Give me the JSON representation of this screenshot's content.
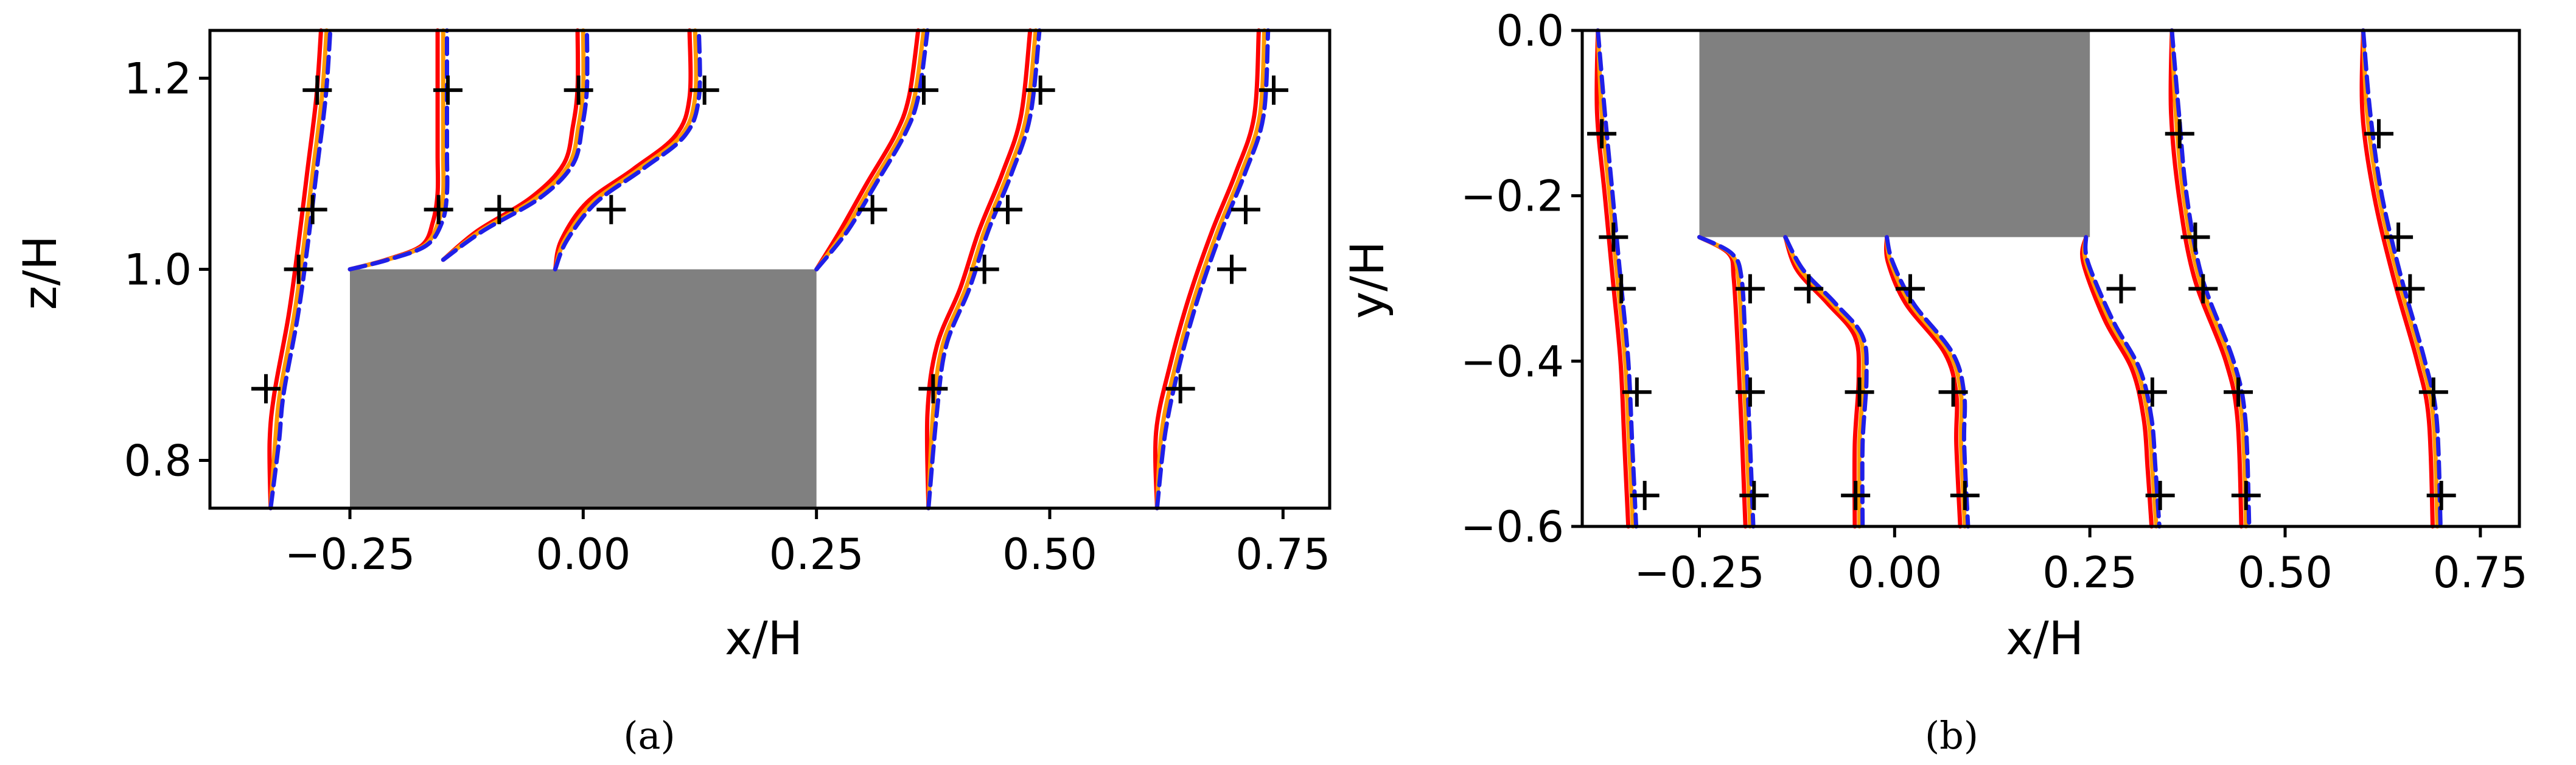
{
  "colors": {
    "red": "#ff0000",
    "orange": "#ff9a00",
    "blue": "#1f1fe8",
    "obstacle": "#808080",
    "markers": "#000000"
  },
  "chart_data": [
    {
      "panel": "a",
      "type": "line",
      "caption": "(a)",
      "xlabel": "x/H",
      "ylabel": "z/H",
      "xlim": [
        -0.4,
        0.8
      ],
      "ylim": [
        0.75,
        1.25
      ],
      "xticks": [
        -0.25,
        0.0,
        0.25,
        0.5,
        0.75
      ],
      "xtick_labels": [
        "−0.25",
        "0.00",
        "0.25",
        "0.50",
        "0.75"
      ],
      "yticks": [
        0.8,
        1.0,
        1.2
      ],
      "ytick_labels": [
        "0.8",
        "1.0",
        "1.2"
      ],
      "obstacle": {
        "x0": -0.25,
        "x1": 0.25,
        "y0": 0.75,
        "y1": 1.0
      },
      "stations": [
        {
          "profile": [
            [
              -0.335,
              0.75
            ],
            [
              -0.33,
              0.82
            ],
            [
              -0.325,
              0.87
            ],
            [
              -0.31,
              0.95
            ],
            [
              -0.3,
              1.02
            ],
            [
              -0.29,
              1.1
            ],
            [
              -0.28,
              1.18
            ],
            [
              -0.275,
              1.25
            ]
          ],
          "markers": [
            [
              -0.34,
              0.875
            ],
            [
              -0.305,
              1.0
            ],
            [
              -0.29,
              1.0625
            ],
            [
              -0.285,
              1.1875
            ]
          ]
        },
        {
          "profile": [
            [
              -0.25,
              1.0
            ],
            [
              -0.21,
              1.01
            ],
            [
              -0.17,
              1.025
            ],
            [
              -0.155,
              1.05
            ],
            [
              -0.15,
              1.08
            ],
            [
              -0.15,
              1.12
            ],
            [
              -0.15,
              1.18
            ],
            [
              -0.15,
              1.25
            ]
          ],
          "markers": [
            [
              -0.155,
              1.0625
            ],
            [
              -0.145,
              1.1875
            ]
          ]
        },
        {
          "profile": [
            [
              -0.15,
              1.01
            ],
            [
              -0.11,
              1.04
            ],
            [
              -0.05,
              1.075
            ],
            [
              -0.015,
              1.11
            ],
            [
              -0.005,
              1.15
            ],
            [
              0.0,
              1.19
            ],
            [
              0.0,
              1.25
            ]
          ],
          "markers": [
            [
              -0.09,
              1.0625
            ],
            [
              -0.005,
              1.1875
            ]
          ]
        },
        {
          "profile": [
            [
              -0.03,
              1.0
            ],
            [
              -0.02,
              1.03
            ],
            [
              0.01,
              1.07
            ],
            [
              0.06,
              1.105
            ],
            [
              0.105,
              1.14
            ],
            [
              0.12,
              1.18
            ],
            [
              0.12,
              1.25
            ]
          ],
          "markers": [
            [
              0.03,
              1.0625
            ],
            [
              0.13,
              1.1875
            ]
          ]
        },
        {
          "profile": [
            [
              0.25,
              1.0
            ],
            [
              0.28,
              1.04
            ],
            [
              0.31,
              1.09
            ],
            [
              0.34,
              1.14
            ],
            [
              0.355,
              1.18
            ],
            [
              0.365,
              1.25
            ]
          ],
          "markers": [
            [
              0.31,
              1.0625
            ],
            [
              0.365,
              1.1875
            ]
          ]
        },
        {
          "profile": [
            [
              0.37,
              0.75
            ],
            [
              0.375,
              0.85
            ],
            [
              0.385,
              0.92
            ],
            [
              0.41,
              0.98
            ],
            [
              0.43,
              1.04
            ],
            [
              0.455,
              1.1
            ],
            [
              0.475,
              1.16
            ],
            [
              0.485,
              1.25
            ]
          ],
          "markers": [
            [
              0.375,
              0.875
            ],
            [
              0.43,
              1.0
            ],
            [
              0.455,
              1.0625
            ],
            [
              0.49,
              1.1875
            ]
          ]
        },
        {
          "profile": [
            [
              0.615,
              0.75
            ],
            [
              0.62,
              0.83
            ],
            [
              0.635,
              0.9
            ],
            [
              0.655,
              0.97
            ],
            [
              0.68,
              1.04
            ],
            [
              0.705,
              1.1
            ],
            [
              0.725,
              1.16
            ],
            [
              0.73,
              1.25
            ]
          ],
          "markers": [
            [
              0.64,
              0.875
            ],
            [
              0.695,
              1.0
            ],
            [
              0.71,
              1.0625
            ],
            [
              0.74,
              1.1875
            ]
          ]
        }
      ]
    },
    {
      "panel": "b",
      "type": "line",
      "caption": "(b)",
      "xlabel": "x/H",
      "ylabel": "y/H",
      "xlim": [
        -0.4,
        0.8
      ],
      "ylim": [
        -0.6,
        0.0
      ],
      "xticks": [
        -0.25,
        0.0,
        0.25,
        0.5,
        0.75
      ],
      "xtick_labels": [
        "−0.25",
        "0.00",
        "0.25",
        "0.50",
        "0.75"
      ],
      "yticks": [
        0.0,
        -0.2,
        -0.4,
        -0.6
      ],
      "ytick_labels": [
        "0.0",
        "−0.2",
        "−0.4",
        "−0.6"
      ],
      "obstacle": {
        "x0": -0.25,
        "x1": 0.25,
        "y0": -0.25,
        "y1": 0.0
      },
      "stations": [
        {
          "profile": [
            [
              -0.38,
              0.0
            ],
            [
              -0.375,
              -0.1
            ],
            [
              -0.365,
              -0.2
            ],
            [
              -0.355,
              -0.3
            ],
            [
              -0.345,
              -0.4
            ],
            [
              -0.34,
              -0.5
            ],
            [
              -0.335,
              -0.6
            ]
          ],
          "markers": [
            [
              -0.375,
              -0.125
            ],
            [
              -0.36,
              -0.25
            ],
            [
              -0.35,
              -0.3125
            ],
            [
              -0.33,
              -0.4375
            ],
            [
              -0.32,
              -0.5625
            ]
          ]
        },
        {
          "profile": [
            [
              -0.25,
              -0.25
            ],
            [
              -0.21,
              -0.27
            ],
            [
              -0.2,
              -0.3
            ],
            [
              -0.195,
              -0.38
            ],
            [
              -0.19,
              -0.48
            ],
            [
              -0.185,
              -0.6
            ]
          ],
          "markers": [
            [
              -0.185,
              -0.3125
            ],
            [
              -0.185,
              -0.4375
            ],
            [
              -0.18,
              -0.5625
            ]
          ]
        },
        {
          "profile": [
            [
              -0.14,
              -0.25
            ],
            [
              -0.12,
              -0.29
            ],
            [
              -0.08,
              -0.33
            ],
            [
              -0.045,
              -0.37
            ],
            [
              -0.04,
              -0.42
            ],
            [
              -0.045,
              -0.5
            ],
            [
              -0.045,
              -0.6
            ]
          ],
          "markers": [
            [
              -0.11,
              -0.3125
            ],
            [
              -0.045,
              -0.4375
            ],
            [
              -0.05,
              -0.5625
            ]
          ]
        },
        {
          "profile": [
            [
              -0.01,
              -0.25
            ],
            [
              -0.005,
              -0.28
            ],
            [
              0.02,
              -0.33
            ],
            [
              0.07,
              -0.39
            ],
            [
              0.085,
              -0.44
            ],
            [
              0.085,
              -0.5
            ],
            [
              0.09,
              -0.6
            ]
          ],
          "markers": [
            [
              0.02,
              -0.3125
            ],
            [
              0.075,
              -0.4375
            ],
            [
              0.09,
              -0.5625
            ]
          ]
        },
        {
          "profile": [
            [
              0.245,
              -0.25
            ],
            [
              0.245,
              -0.28
            ],
            [
              0.275,
              -0.35
            ],
            [
              0.31,
              -0.41
            ],
            [
              0.325,
              -0.47
            ],
            [
              0.33,
              -0.53
            ],
            [
              0.335,
              -0.6
            ]
          ],
          "markers": [
            [
              0.29,
              -0.3125
            ],
            [
              0.33,
              -0.4375
            ],
            [
              0.34,
              -0.5625
            ]
          ]
        },
        {
          "profile": [
            [
              0.355,
              0.0
            ],
            [
              0.36,
              -0.1
            ],
            [
              0.37,
              -0.2
            ],
            [
              0.39,
              -0.3
            ],
            [
              0.43,
              -0.4
            ],
            [
              0.445,
              -0.47
            ],
            [
              0.45,
              -0.6
            ]
          ],
          "markers": [
            [
              0.365,
              -0.125
            ],
            [
              0.385,
              -0.25
            ],
            [
              0.395,
              -0.3125
            ],
            [
              0.44,
              -0.4375
            ],
            [
              0.45,
              -0.5625
            ]
          ]
        },
        {
          "profile": [
            [
              0.6,
              0.0
            ],
            [
              0.605,
              -0.1
            ],
            [
              0.62,
              -0.2
            ],
            [
              0.645,
              -0.3
            ],
            [
              0.675,
              -0.4
            ],
            [
              0.69,
              -0.47
            ],
            [
              0.695,
              -0.6
            ]
          ],
          "markers": [
            [
              0.62,
              -0.125
            ],
            [
              0.645,
              -0.25
            ],
            [
              0.66,
              -0.3125
            ],
            [
              0.69,
              -0.4375
            ],
            [
              0.7,
              -0.5625
            ]
          ]
        }
      ]
    }
  ]
}
